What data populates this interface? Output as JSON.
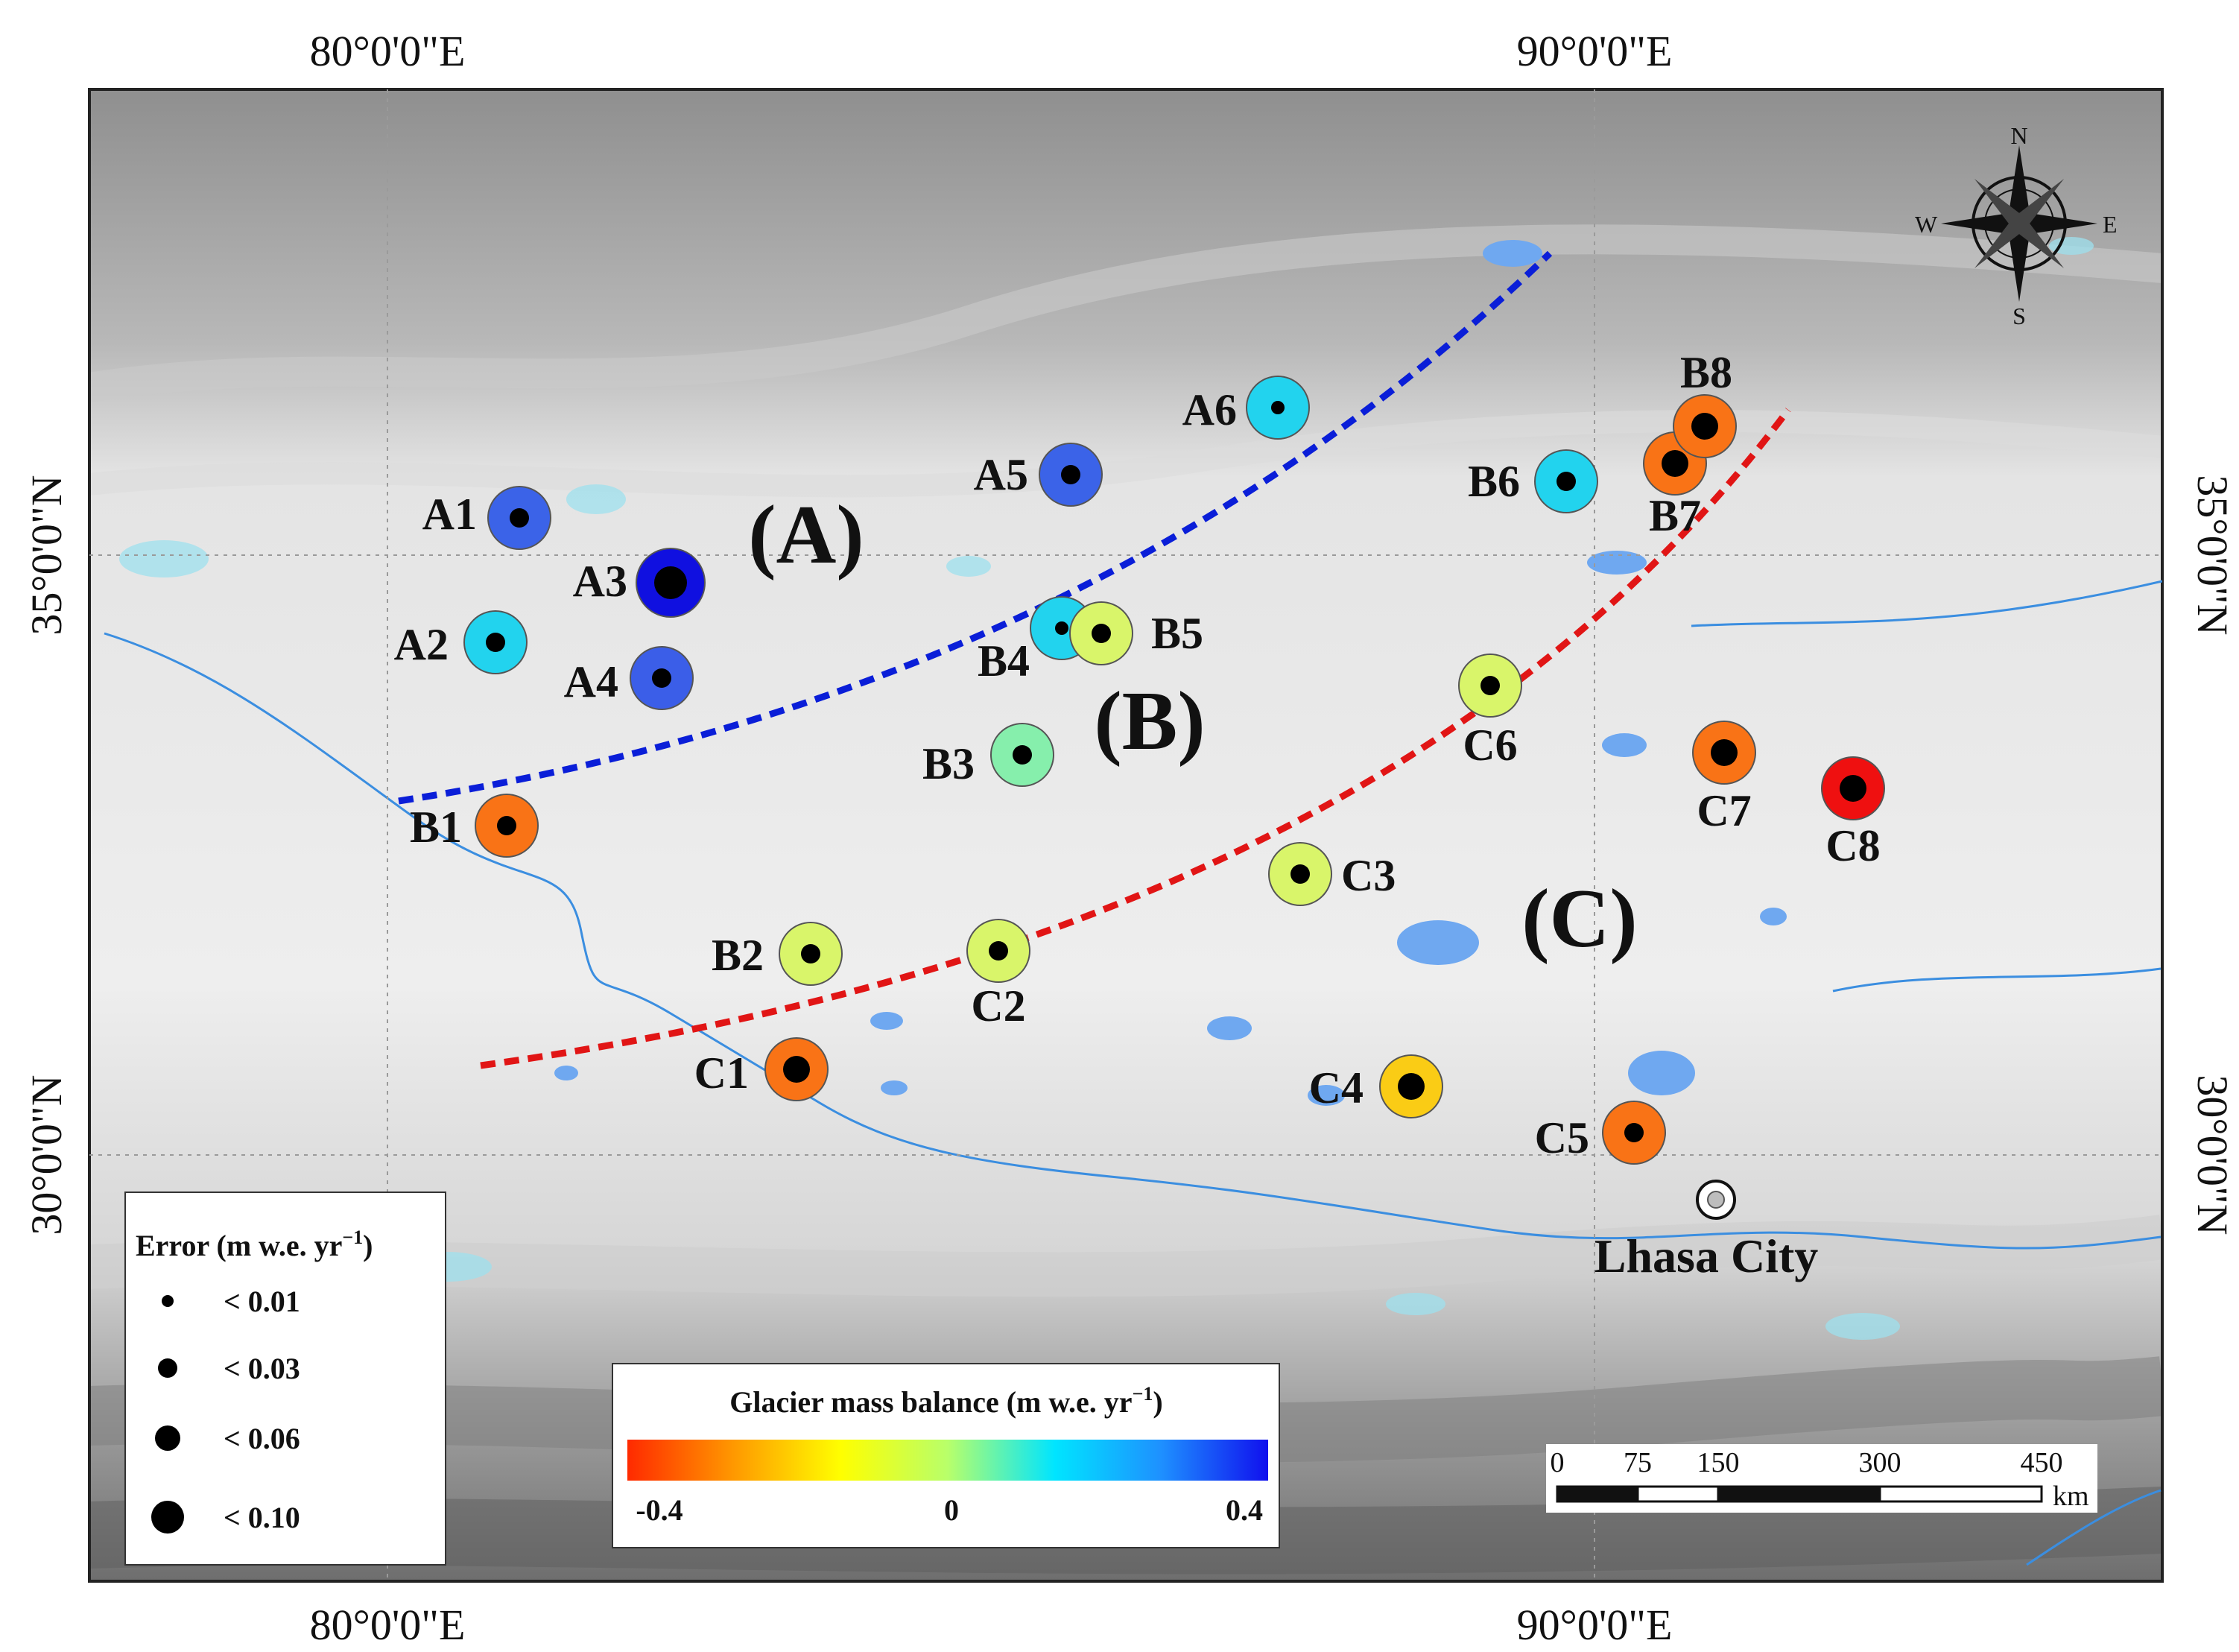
{
  "map": {
    "axes": {
      "lon_labels": [
        "80°0'0\"E",
        "90°0'0\"E"
      ],
      "lat_labels": [
        "35°0'0\"N",
        "30°0'0\"N"
      ]
    },
    "regions": [
      "(A)",
      "(B)",
      "(C)"
    ],
    "sites": [
      {
        "id": "A1",
        "mb_color": "#3b63e8",
        "error": "< 0.03"
      },
      {
        "id": "A2",
        "mb_color": "#22d3ee",
        "error": "< 0.03"
      },
      {
        "id": "A3",
        "mb_color": "#1010e0",
        "error": "< 0.10"
      },
      {
        "id": "A4",
        "mb_color": "#3b5ee8",
        "error": "< 0.03"
      },
      {
        "id": "A5",
        "mb_color": "#3b63e8",
        "error": "< 0.03"
      },
      {
        "id": "A6",
        "mb_color": "#22d3ee",
        "error": "< 0.01"
      },
      {
        "id": "B1",
        "mb_color": "#f97316",
        "error": "< 0.03"
      },
      {
        "id": "B2",
        "mb_color": "#d9f56a",
        "error": "< 0.03"
      },
      {
        "id": "B3",
        "mb_color": "#86efac",
        "error": "< 0.03"
      },
      {
        "id": "B4",
        "mb_color": "#22d3ee",
        "error": "< 0.01"
      },
      {
        "id": "B5",
        "mb_color": "#d9f56a",
        "error": "< 0.03"
      },
      {
        "id": "B6",
        "mb_color": "#22d3ee",
        "error": "< 0.03"
      },
      {
        "id": "B7",
        "mb_color": "#f97316",
        "error": "< 0.06"
      },
      {
        "id": "B8",
        "mb_color": "#f97316",
        "error": "< 0.06"
      },
      {
        "id": "C1",
        "mb_color": "#f97316",
        "error": "< 0.06"
      },
      {
        "id": "C2",
        "mb_color": "#d9f56a",
        "error": "< 0.03"
      },
      {
        "id": "C3",
        "mb_color": "#d9f56a",
        "error": "< 0.03"
      },
      {
        "id": "C4",
        "mb_color": "#facc15",
        "error": "< 0.06"
      },
      {
        "id": "C5",
        "mb_color": "#f97316",
        "error": "< 0.03"
      },
      {
        "id": "C6",
        "mb_color": "#d9f56a",
        "error": "< 0.03"
      },
      {
        "id": "C7",
        "mb_color": "#f97316",
        "error": "< 0.06"
      },
      {
        "id": "C8",
        "mb_color": "#ef1010",
        "error": "< 0.06"
      }
    ],
    "city": "Lhasa City",
    "compass": {
      "n": "N",
      "s": "S",
      "e": "E",
      "w": "W"
    },
    "scale_bar": {
      "labels": [
        "0",
        "75",
        "150",
        "300",
        "450"
      ],
      "unit": "km"
    }
  },
  "legend_error": {
    "title_main": "Error (m w.e. yr",
    "title_sup": "−1",
    "title_end": ")",
    "items": [
      "< 0.01",
      "< 0.03",
      "< 0.06",
      "< 0.10"
    ]
  },
  "legend_mb": {
    "title_main": "Glacier mass balance (m w.e. yr",
    "title_sup": "−1",
    "title_end": ")",
    "ticks": [
      "-0.4",
      "0",
      "0.4"
    ],
    "gradient": [
      "#ff2a00",
      "#ff9900",
      "#ffff00",
      "#b8ff6a",
      "#00e5ff",
      "#1e90ff",
      "#1010ee"
    ]
  },
  "colors": {
    "lake": "#6fa8f0",
    "glacier": "#9ee0ee",
    "river": "#3b8ee0",
    "blue_boundary": "#0a1ed8",
    "red_boundary": "#e11515"
  }
}
